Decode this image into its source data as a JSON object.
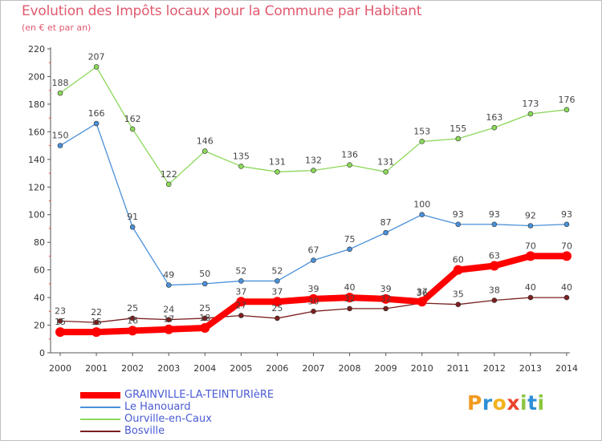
{
  "header": {
    "title": "Evolution des Impôts locaux pour la Commune par Habitant",
    "subtitle": "(en € et par an)"
  },
  "logo": {
    "text": "Proxiti",
    "letters": [
      {
        "ch": "P",
        "color": "#f29a1f"
      },
      {
        "ch": "r",
        "color": "#2f8fd6"
      },
      {
        "ch": "o",
        "color": "#f2b21f"
      },
      {
        "ch": "x",
        "color": "#e8452e"
      },
      {
        "ch": "i",
        "color": "#8cc63f"
      },
      {
        "ch": "t",
        "color": "#2f8fd6"
      },
      {
        "ch": "i",
        "color": "#8cc63f"
      }
    ]
  },
  "chart_data": {
    "type": "line",
    "title": "Evolution des Impôts locaux pour la Commune par Habitant",
    "subtitle": "(en € et par an)",
    "x": [
      2000,
      2001,
      2002,
      2003,
      2004,
      2005,
      2006,
      2007,
      2008,
      2009,
      2010,
      2011,
      2012,
      2013,
      2014
    ],
    "ylim": [
      0,
      220
    ],
    "yticks": [
      0,
      20,
      40,
      60,
      80,
      100,
      120,
      140,
      160,
      180,
      200,
      220
    ],
    "grid": false,
    "legend_position": "bottom-left",
    "series": [
      {
        "name": "GRAINVILLE-LA-TEINTURIèRE",
        "color": "#ff0000",
        "values": [
          15,
          15,
          16,
          17,
          18,
          37,
          37,
          39,
          40,
          39,
          37,
          60,
          63,
          70,
          70
        ]
      },
      {
        "name": "Le Hanouard",
        "color": "#4a90d9",
        "values": [
          150,
          166,
          91,
          49,
          50,
          52,
          52,
          67,
          75,
          87,
          100,
          93,
          93,
          92,
          93
        ]
      },
      {
        "name": "Ourville-en-Caux",
        "color": "#8cd85a",
        "values": [
          188,
          207,
          162,
          122,
          146,
          135,
          131,
          132,
          136,
          131,
          153,
          155,
          163,
          173,
          176
        ]
      },
      {
        "name": "Bosville",
        "color": "#7a1f1f",
        "values": [
          23,
          22,
          25,
          24,
          25,
          27,
          25,
          30,
          32,
          32,
          36,
          35,
          38,
          40,
          40
        ]
      }
    ]
  }
}
